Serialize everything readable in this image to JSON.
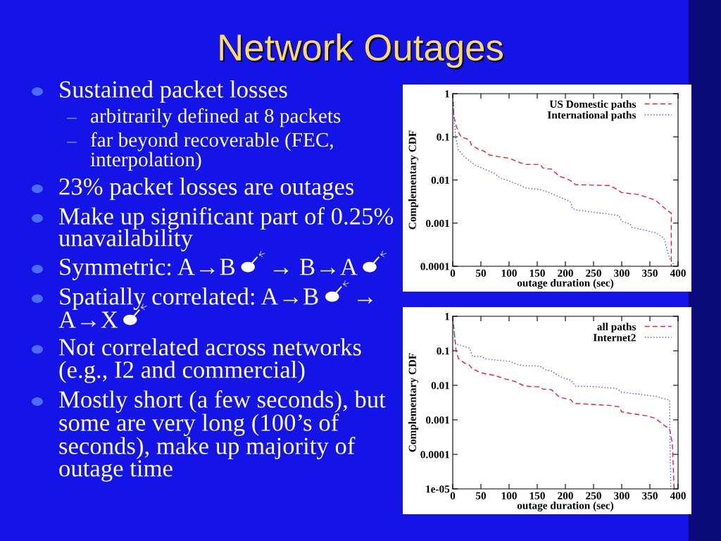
{
  "chart_data": [
    {
      "type": "other",
      "title": "Network Outages",
      "annotations": [
        "Sustained packet losses",
        "arbitrarily defined at 8 packets",
        "far beyond recoverable (FEC,",
        "interpolation)",
        "23% packet losses are outages",
        "Make up significant part of 0.25%",
        "unavailability",
        "Symmetric: A→B",
        "→ B→A",
        "Spatially correlated: A→B",
        "→",
        "A→X",
        "Not correlated across networks",
        "(e.g., I2 and commercial)",
        "Mostly short (a few seconds), but",
        "some are very long (100’s of",
        "seconds), make up majority of",
        "outage time"
      ]
    },
    {
      "type": "line",
      "xlabel": "outage duration (sec)",
      "ylabel": "Complementary CDF",
      "log": "y",
      "legend": "top right",
      "xlim": [
        0,
        400
      ],
      "xticks": [
        0,
        50,
        100,
        150,
        200,
        250,
        300,
        350,
        400
      ],
      "ylim": [
        0.0001,
        1
      ],
      "yticks": [
        0.0001,
        0.001,
        0.01,
        0.1,
        1
      ],
      "series": [
        {
          "name": "US Domestic paths",
          "color": "#e0203a",
          "line_style": "dashed",
          "x": [
            0,
            2,
            5,
            10,
            15,
            30,
            33,
            45,
            55,
            65,
            85,
            100,
            120,
            130,
            155,
            160,
            170,
            175,
            190,
            200,
            210,
            218,
            280,
            290,
            300,
            330,
            360,
            380,
            388,
            388
          ],
          "values": [
            1,
            0.3,
            0.2,
            0.13,
            0.1,
            0.085,
            0.065,
            0.052,
            0.047,
            0.038,
            0.034,
            0.032,
            0.025,
            0.023,
            0.023,
            0.019,
            0.018,
            0.018,
            0.012,
            0.011,
            0.0095,
            0.0078,
            0.0074,
            0.0062,
            0.0051,
            0.0046,
            0.0034,
            0.002,
            0.0017,
            0.0001
          ]
        },
        {
          "name": "International paths",
          "color": "#5050e0",
          "line_style": "dotted",
          "x": [
            0,
            3,
            5,
            10,
            20,
            40,
            60,
            75,
            85,
            100,
            120,
            130,
            155,
            170,
            190,
            205,
            210,
            212,
            220,
            250,
            295,
            300,
            315,
            318,
            360,
            375,
            385,
            395
          ],
          "values": [
            1,
            0.2,
            0.1,
            0.05,
            0.035,
            0.022,
            0.017,
            0.014,
            0.011,
            0.0095,
            0.0075,
            0.0065,
            0.006,
            0.0052,
            0.004,
            0.0033,
            0.003,
            0.0022,
            0.002,
            0.0018,
            0.0015,
            0.0011,
            0.00095,
            0.0008,
            0.0006,
            0.00045,
            0.00015,
            0.0001
          ]
        }
      ]
    },
    {
      "type": "line",
      "xlabel": "outage duration (sec)",
      "ylabel": "Complementary CDF",
      "log": "y",
      "legend": "top right",
      "xlim": [
        0,
        400
      ],
      "xticks": [
        0,
        50,
        100,
        150,
        200,
        250,
        300,
        350,
        400
      ],
      "ylim": [
        1e-05,
        1
      ],
      "yticks": [
        {
          "value": 1e-05,
          "label": "1e-05"
        },
        0.0001,
        0.001,
        0.01,
        0.1,
        1
      ],
      "series": [
        {
          "name": "all paths",
          "color": "#e0203a",
          "line_style": "dashed",
          "x": [
            0,
            3,
            6,
            10,
            20,
            30,
            35,
            50,
            70,
            80,
            95,
            110,
            125,
            135,
            155,
            160,
            175,
            190,
            210,
            215,
            280,
            295,
            300,
            320,
            345,
            360,
            375,
            385,
            390,
            393
          ],
          "values": [
            1,
            0.3,
            0.1,
            0.06,
            0.045,
            0.038,
            0.03,
            0.023,
            0.02,
            0.018,
            0.015,
            0.013,
            0.01,
            0.0093,
            0.009,
            0.0078,
            0.0075,
            0.0045,
            0.0038,
            0.003,
            0.0026,
            0.0024,
            0.0017,
            0.0015,
            0.0013,
            0.0011,
            0.0007,
            0.00055,
            0.0002,
            1e-05
          ]
        },
        {
          "name": "Internet2",
          "color": "#5050e0",
          "line_style": "dotted",
          "x": [
            0,
            3,
            5,
            10,
            30,
            35,
            50,
            60,
            80,
            100,
            115,
            125,
            155,
            165,
            175,
            190,
            210,
            218,
            250,
            290,
            300,
            320,
            360,
            385,
            387
          ],
          "values": [
            1,
            0.3,
            0.16,
            0.15,
            0.12,
            0.07,
            0.068,
            0.058,
            0.053,
            0.05,
            0.04,
            0.037,
            0.036,
            0.028,
            0.026,
            0.018,
            0.014,
            0.0095,
            0.0092,
            0.0081,
            0.0063,
            0.0058,
            0.0048,
            0.0037,
            1e-05
          ]
        }
      ]
    }
  ]
}
